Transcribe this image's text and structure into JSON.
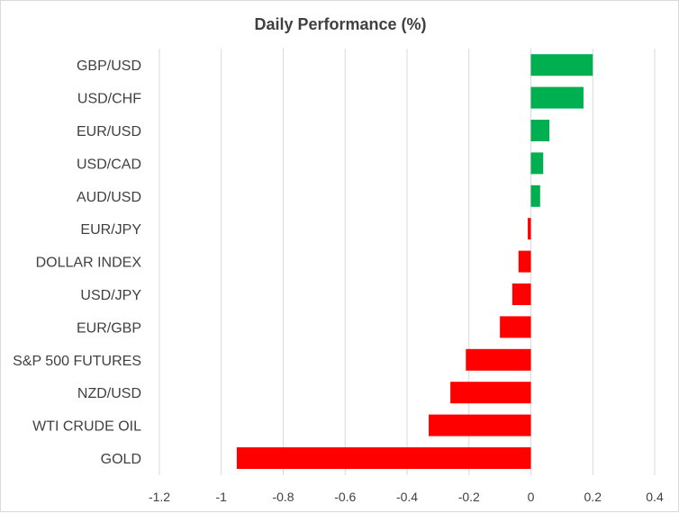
{
  "chart_data": {
    "type": "bar",
    "orientation": "horizontal",
    "title": "Daily Performance (%)",
    "xlabel": "",
    "ylabel": "",
    "categories": [
      "GBP/USD",
      "USD/CHF",
      "EUR/USD",
      "USD/CAD",
      "AUD/USD",
      "EUR/JPY",
      "DOLLAR INDEX",
      "USD/JPY",
      "EUR/GBP",
      "S&P 500 FUTURES",
      "NZD/USD",
      "WTI CRUDE OIL",
      "GOLD"
    ],
    "values": [
      0.2,
      0.17,
      0.06,
      0.04,
      0.03,
      -0.01,
      -0.04,
      -0.06,
      -0.1,
      -0.21,
      -0.26,
      -0.33,
      -0.95
    ],
    "xlim": [
      -1.2,
      0.4
    ],
    "xticks": [
      -1.2,
      -1,
      -0.8,
      -0.6,
      -0.4,
      -0.2,
      0,
      0.2,
      0.4
    ],
    "xtick_labels": [
      "-1.2",
      "-1",
      "-0.8",
      "-0.6",
      "-0.4",
      "-0.2",
      "0",
      "0.2",
      "0.4"
    ],
    "grid": true,
    "legend": "none",
    "colors": {
      "positive": "#00b050",
      "negative": "#ff0000",
      "grid": "#d9d9d9",
      "text": "#404040"
    }
  }
}
